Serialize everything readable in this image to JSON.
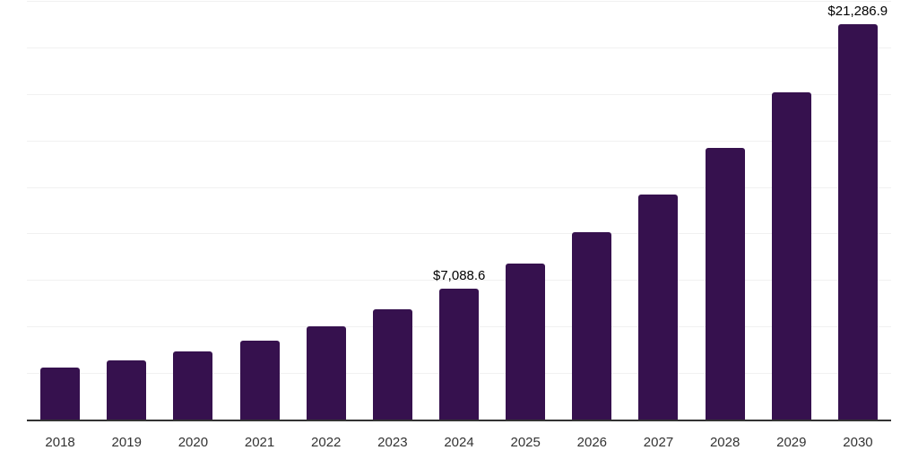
{
  "chart_data": {
    "type": "bar",
    "title": "",
    "xlabel": "",
    "ylabel": "",
    "categories": [
      "2018",
      "2019",
      "2020",
      "2021",
      "2022",
      "2023",
      "2024",
      "2025",
      "2026",
      "2027",
      "2028",
      "2029",
      "2030"
    ],
    "values": [
      2830,
      3210,
      3690,
      4270,
      5060,
      5970,
      7088.6,
      8440,
      10130,
      12150,
      14660,
      17640,
      21286.9
    ],
    "data_labels": [
      "",
      "",
      "",
      "",
      "",
      "",
      "$7,088.6",
      "",
      "",
      "",
      "",
      "",
      "$21,286.9"
    ],
    "ylim": [
      0,
      22500
    ],
    "gridline_step": 2500,
    "grid": "horizontal",
    "legend": "none",
    "colors": {
      "bar": "#36114E",
      "gridline": "#f1f1f1",
      "axis_line": "#333333",
      "tick_label": "#333333",
      "data_label": "#000000",
      "background": "#ffffff"
    }
  }
}
